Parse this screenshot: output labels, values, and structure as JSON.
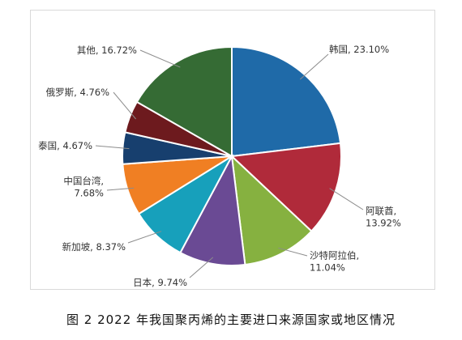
{
  "chart_data": {
    "type": "pie",
    "categories": [
      "韩国",
      "阿联酋",
      "沙特阿拉伯",
      "日本",
      "新加坡",
      "中国台湾",
      "泰国",
      "俄罗斯",
      "其他"
    ],
    "values": [
      23.1,
      13.92,
      11.04,
      9.74,
      8.37,
      7.68,
      4.67,
      4.76,
      16.72
    ],
    "unit": "%",
    "data_labels": [
      [
        "韩国, 23.10%"
      ],
      [
        "阿联酋,",
        "13.92%"
      ],
      [
        "沙特阿拉伯,",
        "11.04%"
      ],
      [
        "日本, 9.74%"
      ],
      [
        "新加坡, 8.37%"
      ],
      [
        "中国台湾,",
        "7.68%"
      ],
      [
        "泰国, 4.67%"
      ],
      [
        "俄罗斯, 4.76%"
      ],
      [
        "其他, 16.72%"
      ]
    ],
    "colors": [
      "#1f6aa8",
      "#b02a3a",
      "#86b140",
      "#6a4a94",
      "#17a0bb",
      "#f07f23",
      "#173f6e",
      "#6d1a1e",
      "#356b34"
    ],
    "start_angle": "12 o'clock",
    "direction": "clockwise",
    "legend": "none",
    "title": ""
  },
  "figure": {
    "caption": "图 2  2022 年我国聚丙烯的主要进口来源国家或地区情况"
  }
}
